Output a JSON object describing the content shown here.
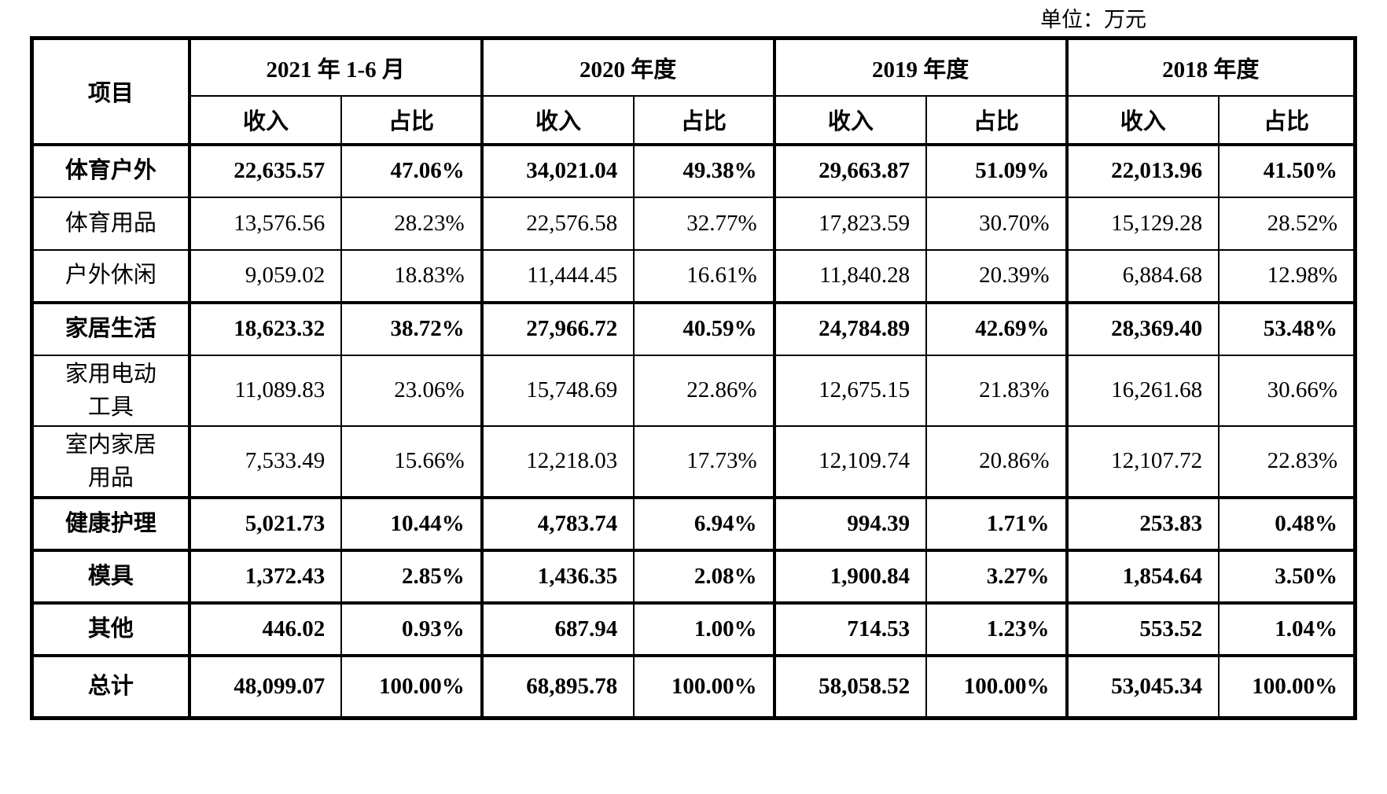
{
  "unit_label": "单位：万元",
  "table": {
    "corner_header": "项目",
    "col_groups": [
      {
        "label": "2021 年 1-6 月"
      },
      {
        "label": "2020 年度"
      },
      {
        "label": "2019 年度"
      },
      {
        "label": "2018 年度"
      }
    ],
    "sub_headers": {
      "revenue": "收入",
      "share": "占比"
    },
    "rows": [
      {
        "label": "体育户外",
        "bold": true,
        "values": [
          "22,635.57",
          "47.06%",
          "34,021.04",
          "49.38%",
          "29,663.87",
          "51.09%",
          "22,013.96",
          "41.50%"
        ]
      },
      {
        "label": "体育用品",
        "bold": false,
        "values": [
          "13,576.56",
          "28.23%",
          "22,576.58",
          "32.77%",
          "17,823.59",
          "30.70%",
          "15,129.28",
          "28.52%"
        ]
      },
      {
        "label": "户外休闲",
        "bold": false,
        "values": [
          "9,059.02",
          "18.83%",
          "11,444.45",
          "16.61%",
          "11,840.28",
          "20.39%",
          "6,884.68",
          "12.98%"
        ]
      },
      {
        "label": "家居生活",
        "bold": true,
        "values": [
          "18,623.32",
          "38.72%",
          "27,966.72",
          "40.59%",
          "24,784.89",
          "42.69%",
          "28,369.40",
          "53.48%"
        ]
      },
      {
        "label": "家用电动\n工具",
        "bold": false,
        "values": [
          "11,089.83",
          "23.06%",
          "15,748.69",
          "22.86%",
          "12,675.15",
          "21.83%",
          "16,261.68",
          "30.66%"
        ]
      },
      {
        "label": "室内家居\n用品",
        "bold": false,
        "values": [
          "7,533.49",
          "15.66%",
          "12,218.03",
          "17.73%",
          "12,109.74",
          "20.86%",
          "12,107.72",
          "22.83%"
        ]
      },
      {
        "label": "健康护理",
        "bold": true,
        "values": [
          "5,021.73",
          "10.44%",
          "4,783.74",
          "6.94%",
          "994.39",
          "1.71%",
          "253.83",
          "0.48%"
        ]
      },
      {
        "label": "模具",
        "bold": true,
        "values": [
          "1,372.43",
          "2.85%",
          "1,436.35",
          "2.08%",
          "1,900.84",
          "3.27%",
          "1,854.64",
          "3.50%"
        ]
      },
      {
        "label": "其他",
        "bold": true,
        "values": [
          "446.02",
          "0.93%",
          "687.94",
          "1.00%",
          "714.53",
          "1.23%",
          "553.52",
          "1.04%"
        ]
      },
      {
        "label": "总计",
        "bold": true,
        "total": true,
        "values": [
          "48,099.07",
          "100.00%",
          "68,895.78",
          "100.00%",
          "58,058.52",
          "100.00%",
          "53,045.34",
          "100.00%"
        ]
      }
    ]
  }
}
